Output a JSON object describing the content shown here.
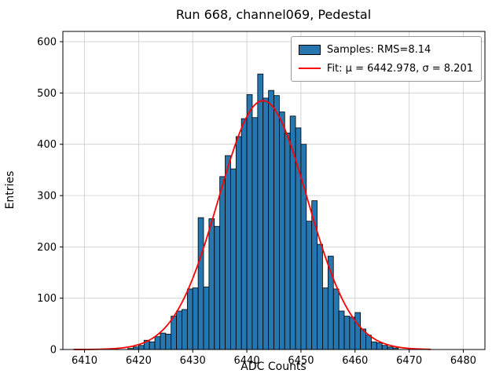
{
  "chart_data": {
    "type": "bar",
    "subtype": "histogram-with-gaussian-fit",
    "title": "Run 668, channel069, Pedestal",
    "xlabel": "ADC Counts",
    "ylabel": "Entries",
    "xlim": [
      6406,
      6484
    ],
    "ylim": [
      0,
      620
    ],
    "x_ticks": [
      6410,
      6420,
      6430,
      6440,
      6450,
      6460,
      6470,
      6480
    ],
    "y_ticks": [
      0,
      100,
      200,
      300,
      400,
      500,
      600
    ],
    "grid": true,
    "grid_color": "#cccccc",
    "bar_color": "#2676b0",
    "bar_edge_color": "#000000",
    "bin_width": 1,
    "bin_left_edges": [
      6418,
      6419,
      6420,
      6421,
      6422,
      6423,
      6424,
      6425,
      6426,
      6427,
      6428,
      6429,
      6430,
      6431,
      6432,
      6433,
      6434,
      6435,
      6436,
      6437,
      6438,
      6439,
      6440,
      6441,
      6442,
      6443,
      6444,
      6445,
      6446,
      6447,
      6448,
      6449,
      6450,
      6451,
      6452,
      6453,
      6454,
      6455,
      6456,
      6457,
      6458,
      6459,
      6460,
      6461,
      6462,
      6463,
      6464,
      6465,
      6466,
      6467
    ],
    "counts": [
      2,
      5,
      8,
      18,
      15,
      25,
      32,
      30,
      65,
      75,
      78,
      118,
      120,
      257,
      122,
      255,
      240,
      337,
      378,
      352,
      415,
      450,
      497,
      452,
      537,
      490,
      505,
      495,
      463,
      422,
      455,
      432,
      400,
      250,
      290,
      205,
      120,
      182,
      118,
      75,
      65,
      63,
      72,
      40,
      28,
      15,
      13,
      8,
      5,
      3
    ],
    "fit": {
      "type": "gaussian",
      "mu": 6442.978,
      "sigma": 8.201,
      "amplitude": 485,
      "color": "#ff0000",
      "x_range": [
        6408,
        6474
      ]
    },
    "legend": {
      "position": "top-right",
      "entries": [
        {
          "label": "Samples: RMS=8.14",
          "marker": "patch",
          "color": "#2676b0"
        },
        {
          "label": "Fit: μ = 6442.978, σ = 8.201",
          "marker": "line",
          "color": "#ff0000"
        }
      ]
    }
  }
}
